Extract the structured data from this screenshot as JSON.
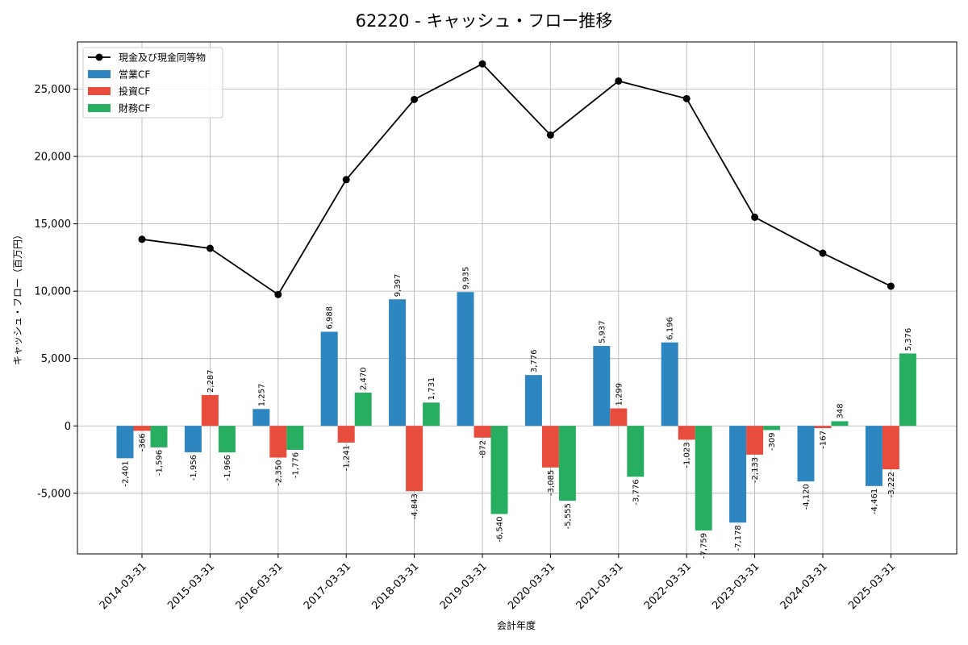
{
  "chart_data": {
    "type": "bar",
    "title": "62220 - キャッシュ・フロー推移",
    "xlabel": "会計年度",
    "ylabel": "キャッシュ・フロー（百万円）",
    "categories": [
      "2014-03-31",
      "2015-03-31",
      "2016-03-31",
      "2017-03-31",
      "2018-03-31",
      "2019-03-31",
      "2020-03-31",
      "2021-03-31",
      "2022-03-31",
      "2023-03-31",
      "2024-03-31",
      "2025-03-31"
    ],
    "ylim": [
      -9500,
      28500
    ],
    "yticks": [
      -5000,
      0,
      5000,
      10000,
      15000,
      20000,
      25000
    ],
    "ytick_labels": [
      "-5,000",
      "0",
      "5,000",
      "10,000",
      "15,000",
      "20,000",
      "25,000"
    ],
    "grid": true,
    "legend_position": "top-left",
    "series": [
      {
        "name": "営業CF",
        "kind": "bar",
        "color": "#2e86c1",
        "values": [
          -2401,
          -1956,
          1257,
          6988,
          9397,
          9935,
          3776,
          5937,
          6196,
          -7178,
          -4120,
          -4461
        ],
        "labels": [
          "-2,401",
          "-1,956",
          "1,257",
          "6,988",
          "9,397",
          "9,935",
          "3,776",
          "5,937",
          "6,196",
          "-7,178",
          "-4,120",
          "-4,461"
        ]
      },
      {
        "name": "投資CF",
        "kind": "bar",
        "color": "#e74c3c",
        "values": [
          -366,
          2287,
          -2350,
          -1241,
          -4843,
          -872,
          -3085,
          1299,
          -1023,
          -2133,
          -167,
          -3222
        ],
        "labels": [
          "-366",
          "2,287",
          "-2,350",
          "-1,241",
          "-4,843",
          "-872",
          "-3,085",
          "1,299",
          "-1,023",
          "-2,133",
          "-167",
          "-3,222"
        ]
      },
      {
        "name": "財務CF",
        "kind": "bar",
        "color": "#27ae60",
        "values": [
          -1596,
          -1966,
          -1776,
          2470,
          1731,
          -6540,
          -5555,
          -3776,
          -7759,
          -309,
          348,
          5376
        ],
        "labels": [
          "-1,596",
          "-1,966",
          "-1,776",
          "2,470",
          "1,731",
          "-6,540",
          "-5,555",
          "-3,776",
          "-7,759",
          "-309",
          "348",
          "5,376"
        ]
      },
      {
        "name": "現金及び現金同等物",
        "kind": "line",
        "color": "#000000",
        "values": [
          13850,
          13180,
          9750,
          18280,
          24230,
          26870,
          21590,
          25600,
          24290,
          15490,
          12820,
          10370
        ]
      }
    ]
  }
}
